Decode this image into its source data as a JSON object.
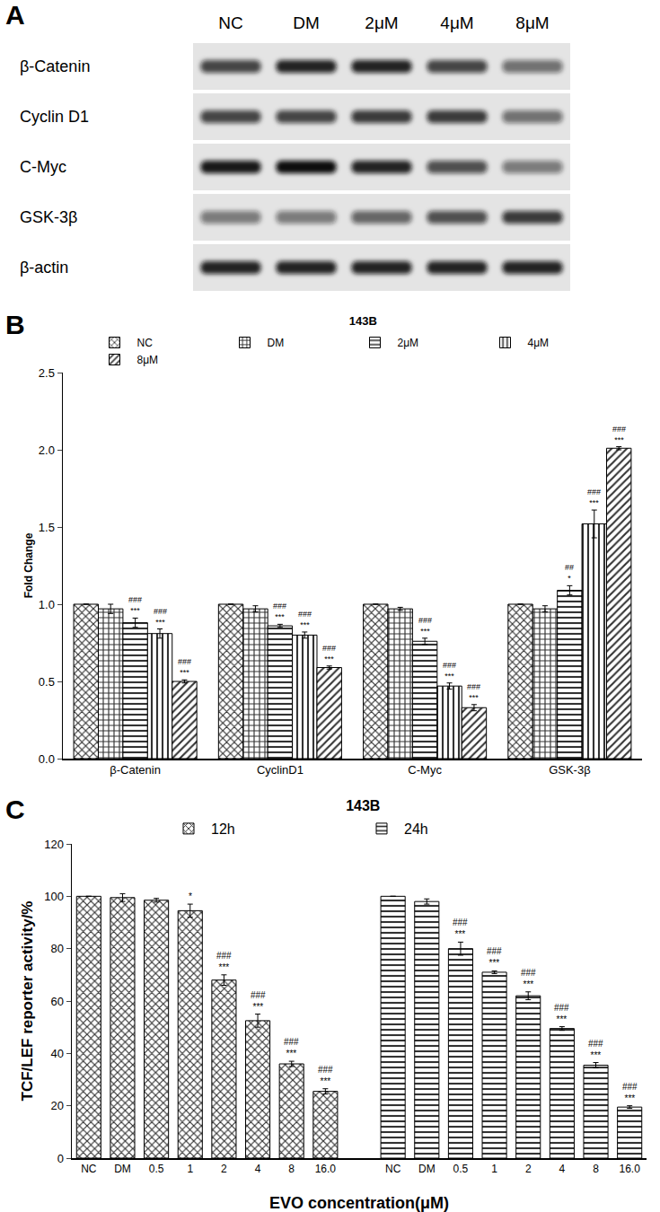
{
  "blot": {
    "panel": "A",
    "lanes": [
      "NC",
      "DM",
      "2μM",
      "4μM",
      "8μM"
    ],
    "rows": [
      {
        "label": "β-Catenin",
        "intensity": [
          0.75,
          0.9,
          0.9,
          0.75,
          0.55
        ]
      },
      {
        "label": "Cyclin D1",
        "intensity": [
          0.75,
          0.75,
          0.8,
          0.8,
          0.55
        ]
      },
      {
        "label": "C-Myc",
        "intensity": [
          0.95,
          1.0,
          0.9,
          0.7,
          0.5
        ]
      },
      {
        "label": "GSK-3β",
        "intensity": [
          0.5,
          0.5,
          0.6,
          0.7,
          0.8
        ]
      },
      {
        "label": "β-actin",
        "intensity": [
          0.9,
          0.9,
          0.9,
          0.9,
          0.9
        ]
      }
    ]
  },
  "chart_data": [
    {
      "panel": "B",
      "type": "bar",
      "title": "143B",
      "y_label": "Fold Change",
      "categories": [
        "β-Catenin",
        "CyclinD1",
        "C-Myc",
        "GSK-3β"
      ],
      "ylim": [
        0,
        2.5
      ],
      "yticks": [
        {
          "value": 0,
          "label": "0.0"
        },
        0.5,
        {
          "value": 1,
          "label": "1.0"
        },
        1.5,
        {
          "value": 2,
          "label": "2.0"
        },
        2.5
      ],
      "grid": false,
      "legend": "top",
      "series": [
        {
          "name": "NC",
          "color": "#333333",
          "marker": "crosshatch",
          "values": [
            1,
            1,
            1,
            1
          ],
          "errors": [
            0,
            0,
            0,
            0
          ],
          "significance": [
            null,
            null,
            null,
            null
          ]
        },
        {
          "name": "DM",
          "color": "#333333",
          "marker": "grid",
          "values": [
            0.97,
            0.97,
            0.97,
            0.97
          ],
          "errors": [
            0.03,
            0.02,
            0.01,
            0.02
          ],
          "significance": [
            null,
            null,
            null,
            null
          ]
        },
        {
          "name": "2μM",
          "color": "#333333",
          "marker": "horizontal",
          "values": [
            0.88,
            0.86,
            0.76,
            1.09
          ],
          "errors": [
            0.03,
            0.01,
            0.02,
            0.03
          ],
          "significance": [
            [
              "###",
              "***"
            ],
            [
              "###",
              "***"
            ],
            [
              "###",
              "***"
            ],
            [
              "##",
              "*"
            ]
          ]
        },
        {
          "name": "4μM",
          "color": "#333333",
          "marker": "vertical",
          "values": [
            0.81,
            0.8,
            0.47,
            1.52
          ],
          "errors": [
            0.03,
            0.02,
            0.02,
            0.09
          ],
          "significance": [
            [
              "###",
              "***"
            ],
            [
              "###",
              "***"
            ],
            [
              "###",
              "***"
            ],
            [
              "###",
              "***"
            ]
          ]
        },
        {
          "name": "8μM",
          "color": "#333333",
          "marker": "diagonal",
          "values": [
            0.5,
            0.59,
            0.33,
            2.01
          ],
          "errors": [
            0.01,
            0.01,
            0.02,
            0.01
          ],
          "significance": [
            [
              "###",
              "***"
            ],
            [
              "###",
              "***"
            ],
            [
              "###",
              "***"
            ],
            [
              "###",
              "***"
            ]
          ]
        }
      ]
    },
    {
      "panel": "C",
      "type": "bar",
      "title": "143B",
      "y_label": "TCF/LEF reporter activity/%",
      "x_label": "EVO concentration(μM)",
      "categories": [
        "NC",
        "DM",
        "0.5",
        "1",
        "2",
        "4",
        "8",
        "16.0",
        null,
        "NC",
        "DM",
        "0.5",
        "1",
        "2",
        "4",
        "8",
        "16.0"
      ],
      "ylim": [
        0,
        120
      ],
      "yticks": [
        0,
        20,
        40,
        60,
        80,
        100,
        120
      ],
      "grid": false,
      "legend": "top",
      "series": [
        {
          "name": "12h",
          "color": "#333333",
          "marker": "crosshatch",
          "values": [
            100,
            99.5,
            98.5,
            94.5,
            68,
            52.5,
            36,
            25.5,
            null,
            null,
            null,
            null,
            null,
            null,
            null,
            null,
            null
          ],
          "errors": [
            0,
            1.5,
            0.7,
            2.5,
            2,
            2.5,
            1,
            1,
            null,
            null,
            null,
            null,
            null,
            null,
            null,
            null,
            null
          ],
          "significance": [
            null,
            null,
            null,
            [
              "*"
            ],
            [
              "###",
              "***"
            ],
            [
              "###",
              "***"
            ],
            [
              "###",
              "***"
            ],
            [
              "###",
              "***"
            ],
            null,
            null,
            null,
            null,
            null,
            null,
            null,
            null,
            null
          ]
        },
        {
          "name": "24h",
          "color": "#333333",
          "marker": "horizontal",
          "values": [
            null,
            null,
            null,
            null,
            null,
            null,
            null,
            null,
            null,
            100,
            98,
            80,
            71,
            62,
            49.5,
            35.5,
            19.5
          ],
          "errors": [
            null,
            null,
            null,
            null,
            null,
            null,
            null,
            null,
            null,
            0,
            1,
            2.5,
            0.5,
            1.5,
            0.7,
            1,
            0.5
          ],
          "significance": [
            null,
            null,
            null,
            null,
            null,
            null,
            null,
            null,
            null,
            null,
            null,
            [
              "###",
              "***"
            ],
            [
              "###",
              "***"
            ],
            [
              "###",
              "***"
            ],
            [
              "###",
              "***"
            ],
            [
              "###",
              "***"
            ],
            [
              "###",
              "***"
            ]
          ]
        }
      ]
    }
  ]
}
